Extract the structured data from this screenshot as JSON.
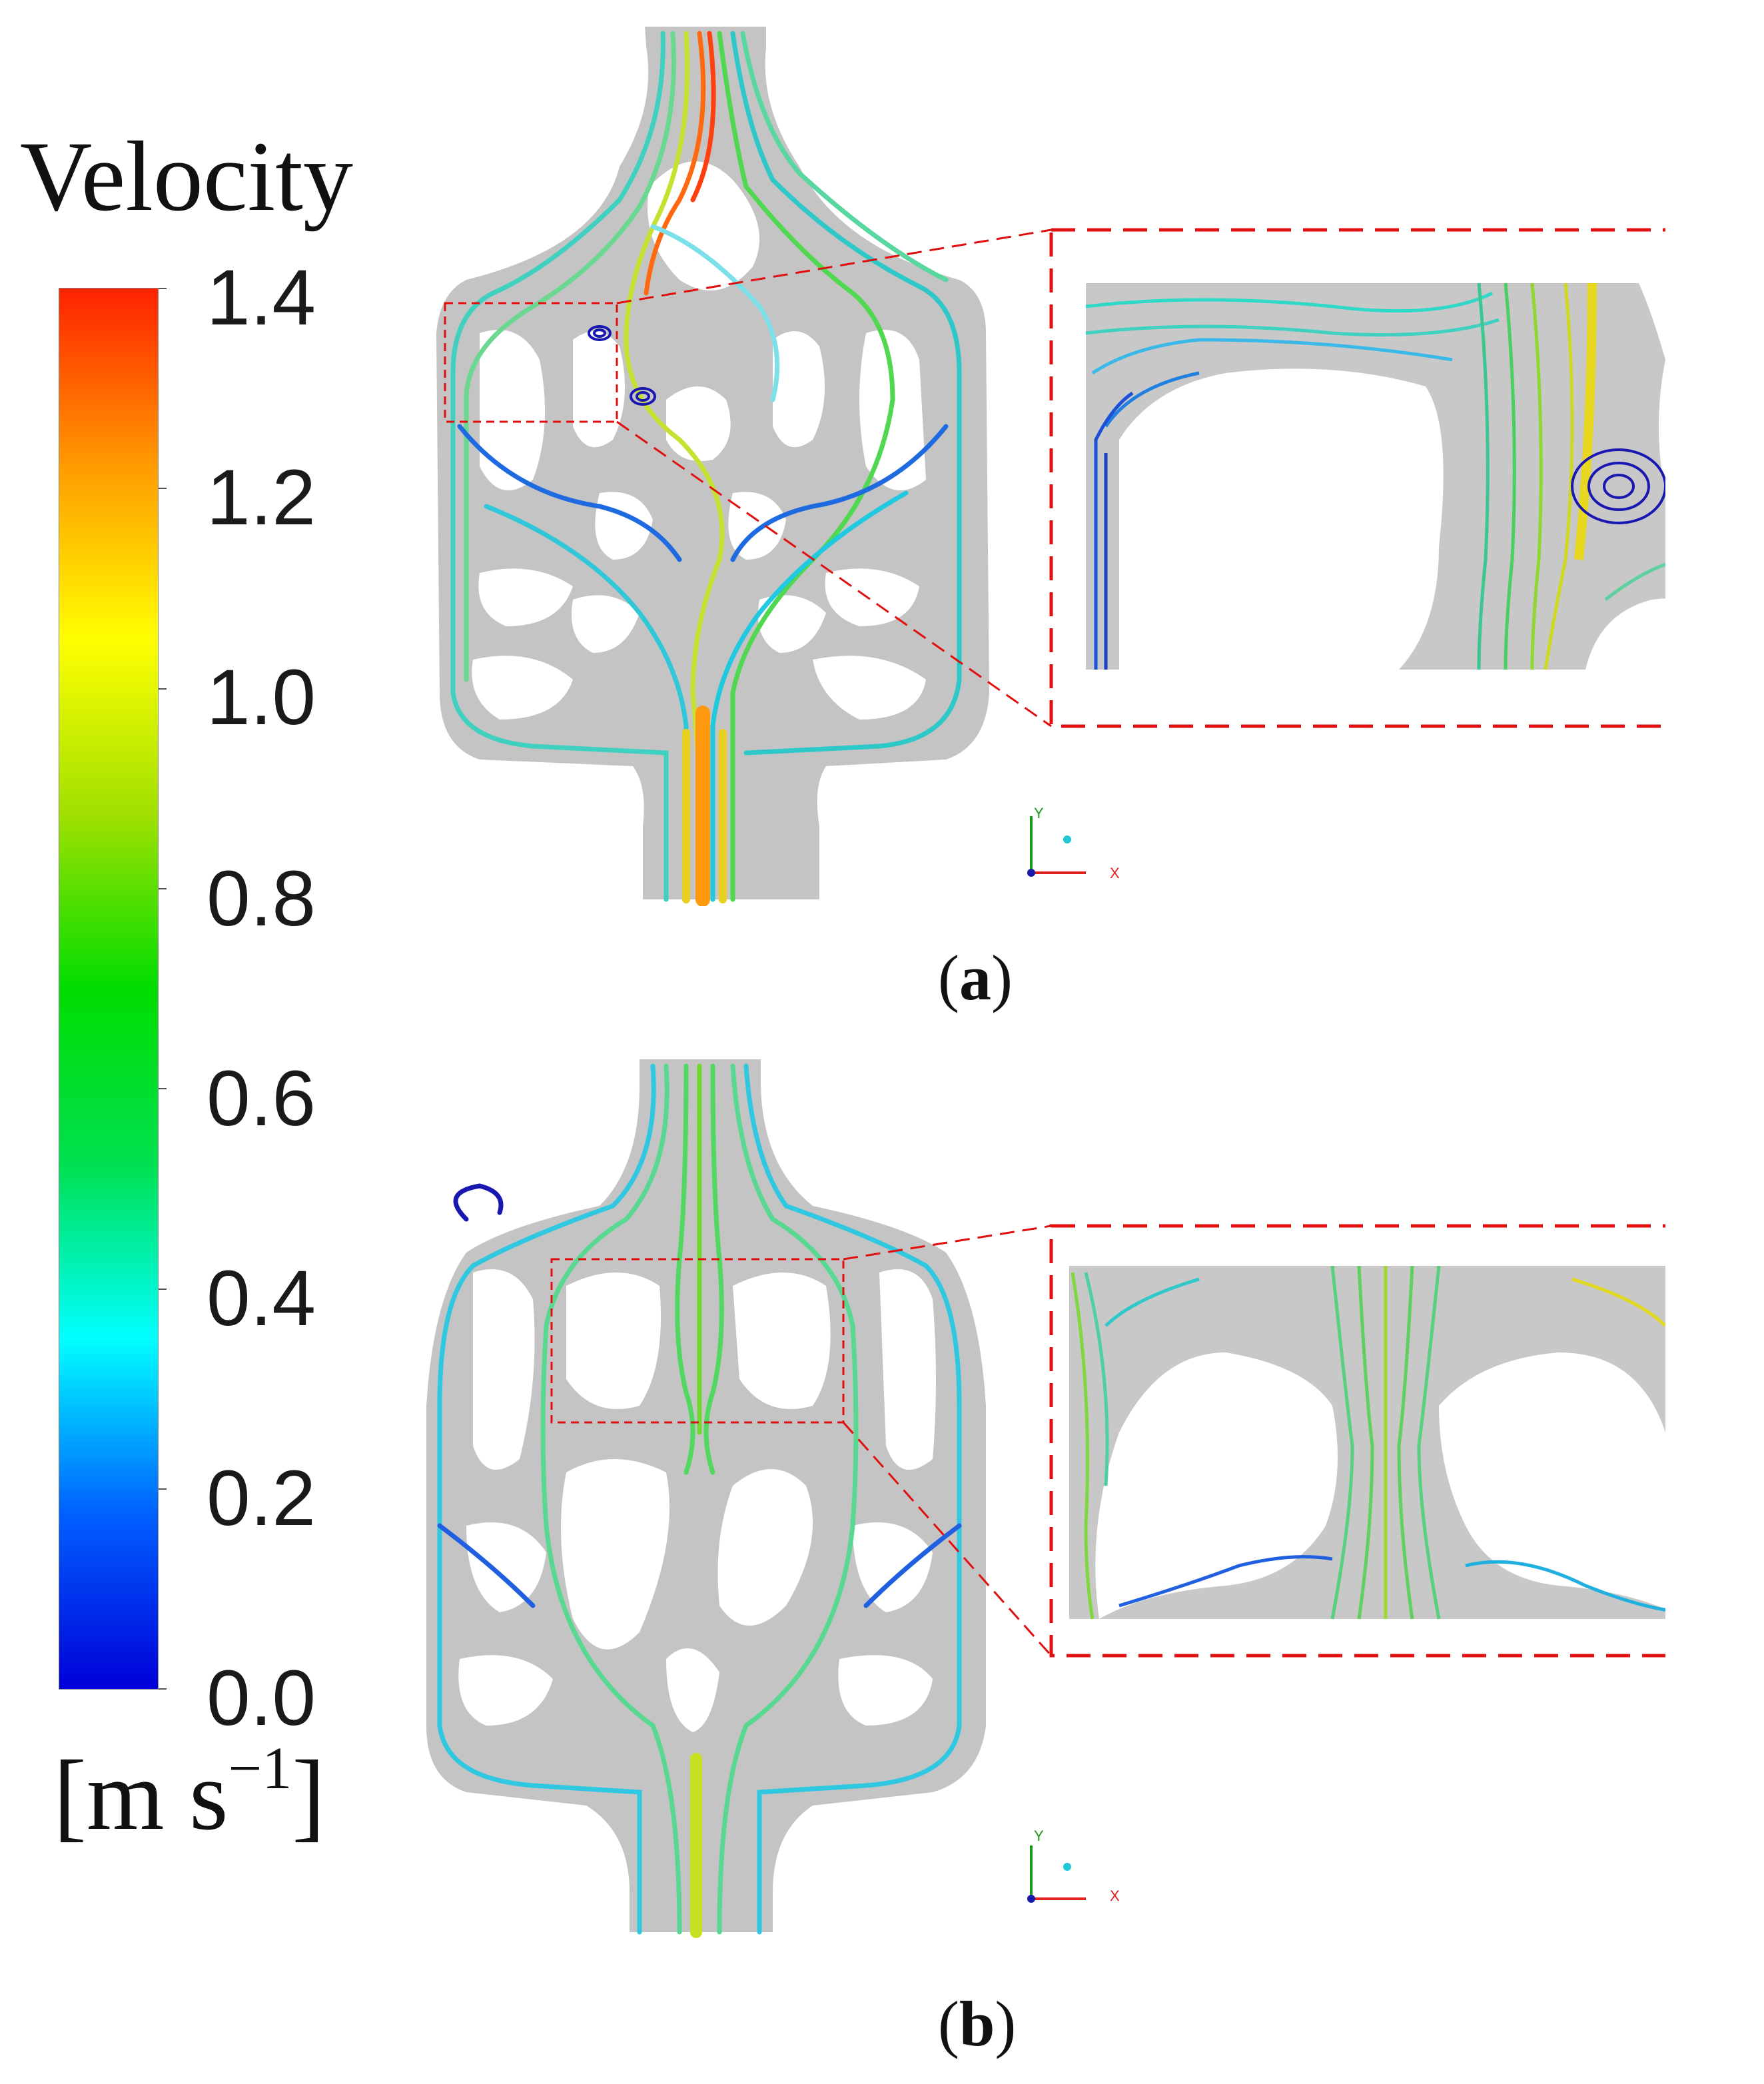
{
  "legend": {
    "title": "Velocity",
    "units_base": "[m s",
    "units_exp": "−1",
    "units_close": "]",
    "ticks": [
      "1.4",
      "1.2",
      "1.0",
      "0.8",
      "0.6",
      "0.4",
      "0.2",
      "0.0"
    ],
    "tick_values": [
      1.4,
      1.2,
      1.0,
      0.8,
      0.6,
      0.4,
      0.2,
      0.0
    ],
    "range": [
      0.0,
      1.4
    ],
    "colormap": [
      "#0000d8",
      "#0060ff",
      "#00ffff",
      "#00e050",
      "#00dd00",
      "#a0e000",
      "#ffff00",
      "#ff9900",
      "#ff2200"
    ]
  },
  "panels": [
    {
      "label_open": "(",
      "label_letter": "a",
      "label_close": ")"
    },
    {
      "label_open": "(",
      "label_letter": "b",
      "label_close": ")"
    }
  ],
  "axes_triad": {
    "y_label": "Y",
    "x_label": "X"
  },
  "colors": {
    "wall": "#c4c4c4",
    "inset_frame": "#e01010",
    "low": "#1414c8",
    "mid": "#20d8b0",
    "high": "#ff5010"
  }
}
